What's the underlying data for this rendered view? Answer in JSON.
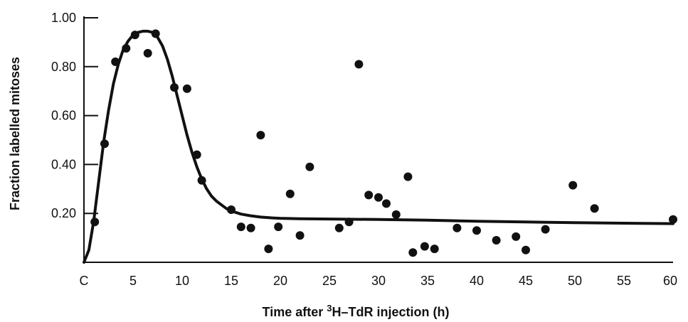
{
  "chart_data": {
    "type": "scatter",
    "title": "",
    "xlabel_parts": [
      "Time after ",
      "3",
      "H–TdR injection (h)"
    ],
    "ylabel": "Fraction labelled mitoses",
    "xlim": [
      0,
      60
    ],
    "ylim": [
      0,
      1.0
    ],
    "x_ticks": [
      0,
      5,
      10,
      15,
      20,
      25,
      30,
      35,
      40,
      45,
      50,
      55,
      60
    ],
    "x_tick_labels": [
      "C",
      "5",
      "10",
      "15",
      "20",
      "25",
      "30",
      "35",
      "40",
      "45",
      "50",
      "55",
      "60"
    ],
    "y_ticks": [
      0.2,
      0.4,
      0.6,
      0.8,
      1.0
    ],
    "y_tick_labels": [
      "0.20",
      "0.40",
      "0.60",
      "0.80",
      "1.00"
    ],
    "grid": false,
    "series": [
      {
        "kind": "points",
        "x": [
          1.1,
          2.1,
          3.2,
          4.3,
          5.2,
          6.5,
          7.3,
          9.2,
          10.5,
          11.5,
          12.0,
          15.0,
          16.0,
          17.0,
          18.0,
          18.8,
          19.8,
          21.0,
          22.0,
          23.0,
          26.0,
          27.0,
          28.0,
          29.0,
          30.0,
          30.8,
          31.8,
          33.0,
          33.5,
          34.7,
          35.7,
          38.0,
          40.0,
          42.0,
          44.0,
          45.0,
          47.0,
          49.8,
          52.0,
          60.0
        ],
        "y": [
          0.165,
          0.485,
          0.82,
          0.875,
          0.93,
          0.855,
          0.935,
          0.715,
          0.71,
          0.44,
          0.335,
          0.215,
          0.145,
          0.14,
          0.52,
          0.055,
          0.145,
          0.28,
          0.11,
          0.39,
          0.14,
          0.165,
          0.81,
          0.275,
          0.265,
          0.24,
          0.195,
          0.35,
          0.04,
          0.065,
          0.055,
          0.14,
          0.13,
          0.09,
          0.105,
          0.05,
          0.135,
          0.315,
          0.22,
          0.175
        ]
      },
      {
        "kind": "fitted-curve",
        "x": [
          0,
          0.5,
          1,
          1.5,
          2,
          2.5,
          3,
          3.5,
          4,
          4.5,
          5,
          5.5,
          6,
          6.5,
          7,
          7.5,
          8,
          8.5,
          9,
          9.5,
          10,
          10.5,
          11,
          11.5,
          12,
          12.5,
          13,
          13.5,
          14,
          14.5,
          15,
          16,
          17,
          18,
          19,
          20,
          22,
          25,
          30,
          35,
          40,
          45,
          50,
          55,
          60
        ],
        "y": [
          0.0,
          0.05,
          0.17,
          0.33,
          0.49,
          0.62,
          0.73,
          0.81,
          0.87,
          0.905,
          0.93,
          0.94,
          0.945,
          0.945,
          0.94,
          0.92,
          0.885,
          0.83,
          0.76,
          0.68,
          0.6,
          0.52,
          0.45,
          0.39,
          0.34,
          0.3,
          0.27,
          0.25,
          0.235,
          0.22,
          0.21,
          0.197,
          0.19,
          0.185,
          0.182,
          0.18,
          0.178,
          0.177,
          0.175,
          0.172,
          0.168,
          0.165,
          0.162,
          0.16,
          0.158
        ]
      }
    ]
  }
}
